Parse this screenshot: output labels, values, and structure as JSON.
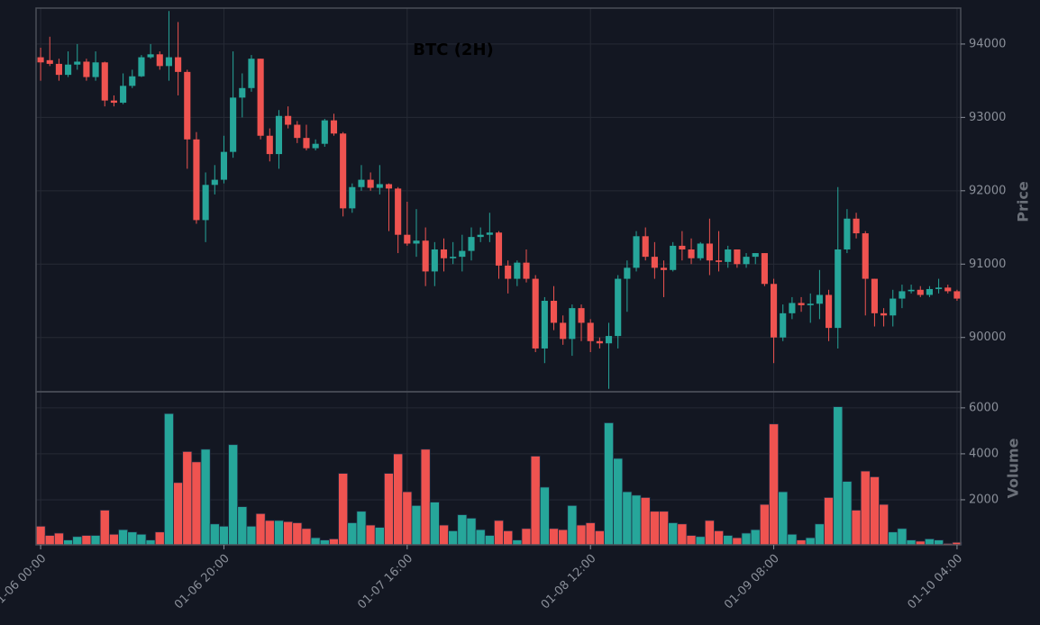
{
  "chart_data": {
    "type": "candlestick",
    "title": "BTC (2H)",
    "ylabel": "Price",
    "volume_label": "Volume",
    "up_color": "#26a69a",
    "down_color": "#ef5350",
    "grid": true,
    "open": [
      93820,
      93780,
      93730,
      93580,
      93720,
      93760,
      93550,
      93750,
      93230,
      93200,
      93430,
      93560,
      93820,
      93860,
      93700,
      93820,
      93620,
      92700,
      91600,
      92080,
      92150,
      92530,
      93270,
      93400,
      93800,
      92750,
      92500,
      93020,
      92900,
      92720,
      92580,
      92640,
      92960,
      92780,
      91760,
      92050,
      92150,
      92040,
      92090,
      92030,
      91400,
      91280,
      91320,
      90900,
      91200,
      91080,
      91100,
      91180,
      91370,
      91400,
      91430,
      90980,
      90800,
      91020,
      90800,
      89850,
      90500,
      90200,
      89980,
      90400,
      90200,
      89950,
      89920,
      90020,
      90800,
      90950,
      91380,
      91100,
      90950,
      90920,
      91250,
      91200,
      91080,
      91280,
      91050,
      91030,
      91200,
      91000,
      91100,
      91150,
      90730,
      90000,
      90330,
      90470,
      90440,
      90460,
      90580,
      90130,
      91200,
      91620,
      91420,
      90800,
      90330,
      90300,
      90530,
      90630,
      90650,
      90580,
      90660,
      90680,
      90630
    ],
    "high": [
      93950,
      94100,
      93800,
      93900,
      94000,
      93800,
      93900,
      93760,
      93300,
      93600,
      93650,
      93850,
      94000,
      93900,
      94450,
      94300,
      93650,
      92800,
      92250,
      92350,
      92750,
      93900,
      93600,
      93850,
      93800,
      92850,
      93100,
      93150,
      92950,
      92900,
      92700,
      92980,
      93050,
      92800,
      92100,
      92350,
      92250,
      92350,
      92100,
      92050,
      91850,
      91750,
      91500,
      91300,
      91350,
      91300,
      91400,
      91500,
      91500,
      91700,
      91450,
      91050,
      91050,
      91200,
      90850,
      90550,
      90700,
      90300,
      90450,
      90450,
      90250,
      90000,
      90200,
      90850,
      91050,
      91450,
      91500,
      91300,
      91050,
      91300,
      91450,
      91350,
      91300,
      91620,
      91450,
      91250,
      91200,
      91150,
      91150,
      91150,
      90800,
      90450,
      90550,
      90550,
      90600,
      90920,
      90650,
      92050,
      91750,
      91700,
      91450,
      90800,
      90400,
      90650,
      90720,
      90720,
      90700,
      90700,
      90800,
      90720,
      90650
    ],
    "low": [
      93500,
      93700,
      93500,
      93550,
      93650,
      93500,
      93500,
      93150,
      93150,
      93180,
      93400,
      93550,
      93800,
      93650,
      93500,
      93300,
      92300,
      91550,
      91300,
      91950,
      92100,
      92450,
      93000,
      93350,
      92700,
      92400,
      92300,
      92850,
      92650,
      92550,
      92550,
      92600,
      92750,
      91650,
      91700,
      92000,
      92000,
      91950,
      91450,
      91150,
      91250,
      91100,
      90700,
      90700,
      90900,
      91000,
      90900,
      91050,
      91300,
      91300,
      90800,
      90600,
      90700,
      90750,
      89800,
      89650,
      90100,
      89900,
      89750,
      89950,
      89800,
      89850,
      89300,
      89850,
      90350,
      90900,
      91050,
      90800,
      90550,
      90900,
      91050,
      91000,
      91050,
      90850,
      90900,
      90950,
      90950,
      90950,
      91000,
      90700,
      89650,
      89950,
      90250,
      90350,
      90200,
      90250,
      89950,
      89850,
      91150,
      91350,
      90300,
      90150,
      90150,
      90150,
      90400,
      90600,
      90550,
      90550,
      90600,
      90600,
      90500
    ],
    "close": [
      93750,
      93730,
      93580,
      93720,
      93760,
      93550,
      93750,
      93230,
      93200,
      93430,
      93560,
      93820,
      93860,
      93700,
      93820,
      93620,
      92700,
      91600,
      92080,
      92150,
      92530,
      93270,
      93400,
      93800,
      92750,
      92500,
      93020,
      92900,
      92720,
      92580,
      92640,
      92960,
      92780,
      91760,
      92050,
      92150,
      92040,
      92090,
      92030,
      91400,
      91280,
      91320,
      90900,
      91200,
      91080,
      91100,
      91180,
      91370,
      91400,
      91430,
      90980,
      90800,
      91020,
      90800,
      89850,
      90500,
      90200,
      89980,
      90400,
      90200,
      89950,
      89920,
      90020,
      90800,
      90950,
      91380,
      91100,
      90950,
      90920,
      91250,
      91200,
      91080,
      91280,
      91050,
      91030,
      91200,
      91000,
      91100,
      91150,
      90730,
      90000,
      90330,
      90470,
      90440,
      90460,
      90580,
      90130,
      91200,
      91620,
      91420,
      90800,
      90330,
      90300,
      90530,
      90630,
      90650,
      90580,
      90660,
      90680,
      90630,
      90530
    ],
    "volume": [
      850,
      450,
      550,
      250,
      400,
      450,
      450,
      1550,
      500,
      700,
      600,
      500,
      250,
      600,
      5750,
      2750,
      4100,
      3650,
      4200,
      950,
      850,
      4400,
      1700,
      850,
      1400,
      1100,
      1100,
      1050,
      1000,
      750,
      350,
      250,
      300,
      3150,
      1000,
      1500,
      900,
      800,
      3150,
      4000,
      2350,
      1750,
      4200,
      1900,
      900,
      650,
      1350,
      1200,
      700,
      450,
      1100,
      650,
      250,
      750,
      3900,
      2550,
      750,
      700,
      1750,
      900,
      1000,
      650,
      5350,
      3800,
      2350,
      2200,
      2100,
      1500,
      1500,
      1000,
      950,
      450,
      400,
      1100,
      650,
      450,
      350,
      550,
      700,
      1800,
      5300,
      2350,
      500,
      250,
      350,
      950,
      2100,
      6050,
      2800,
      1550,
      3250,
      3000,
      1800,
      600,
      750,
      250,
      200,
      300,
      250,
      100,
      150
    ],
    "xlim": [
      -0.5,
      100.4
    ],
    "xticks": [
      {
        "value": 0,
        "label": "01-06 00:00"
      },
      {
        "value": 20,
        "label": "01-06 20:00"
      },
      {
        "value": 40,
        "label": "01-07 16:00"
      },
      {
        "value": 60,
        "label": "01-08 12:00"
      },
      {
        "value": 80,
        "label": "01-09 08:00"
      },
      {
        "value": 100,
        "label": "01-10 04:00"
      }
    ],
    "ylim": [
      89260,
      94490
    ],
    "yticks": [
      90000,
      91000,
      92000,
      93000,
      94000
    ],
    "volume_ylim": [
      0,
      6700
    ],
    "volume_yticks": [
      2000,
      4000,
      6000
    ]
  }
}
